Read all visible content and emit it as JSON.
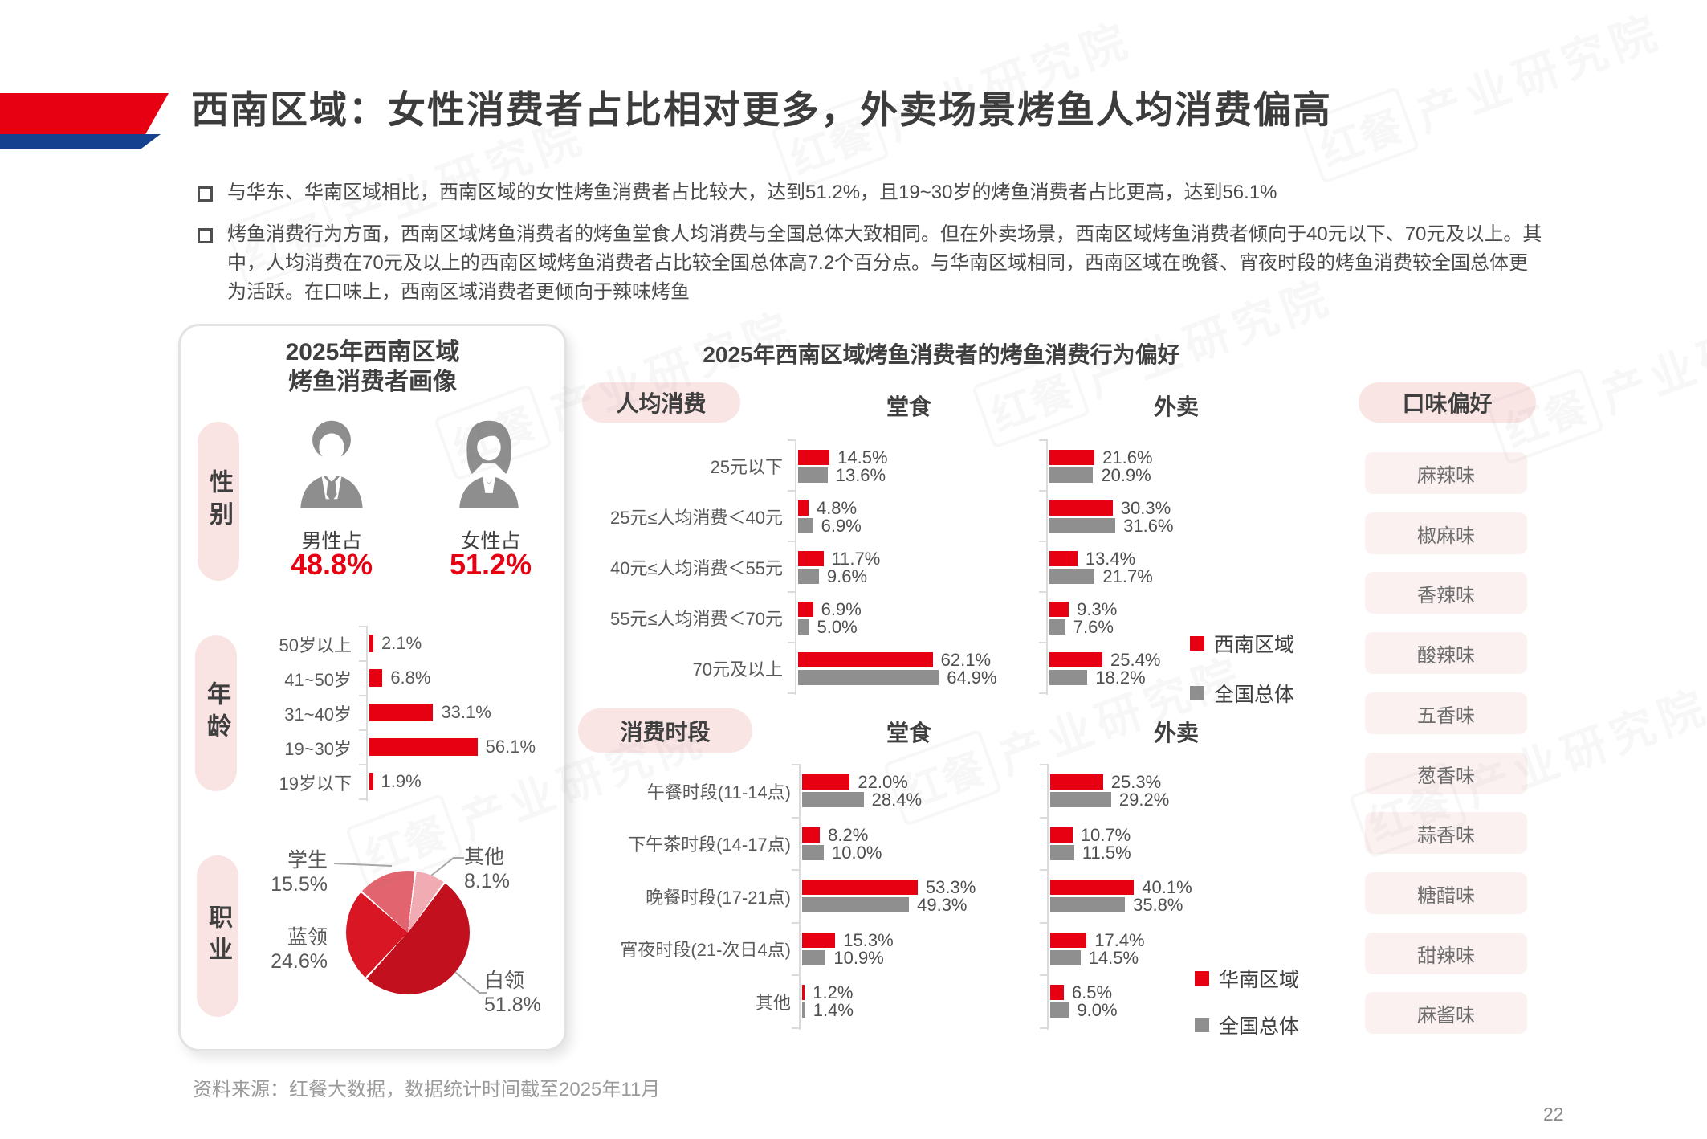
{
  "header": {
    "title": "西南区域：女性消费者占比相对更多，外卖场景烤鱼人均消费偏高"
  },
  "bullets": [
    "与华东、华南区域相比，西南区域的女性烤鱼消费者占比较大，达到51.2%，且19~30岁的烤鱼消费者占比更高，达到56.1%",
    "烤鱼消费行为方面，西南区域烤鱼消费者的烤鱼堂食人均消费与全国总体大致相同。但在外卖场景，西南区域烤鱼消费者倾向于40元以下、70元及以上。其中，人均消费在70元及以上的西南区域烤鱼消费者占比较全国总体高7.2个百分点。与华南区域相同，西南区域在晚餐、宵夜时段的烤鱼消费较全国总体更为活跃。在口味上，西南区域消费者更倾向于辣味烤鱼"
  ],
  "profile": {
    "title_line1": "2025年西南区域",
    "title_line2": "烤鱼消费者画像"
  },
  "sections": {
    "gender_label": "性别",
    "age_label": "年龄",
    "occupation_label": "职业",
    "behavior_title": "2025年西南区域烤鱼消费者的烤鱼消费行为偏好",
    "spend_header": "人均消费",
    "daypart_header": "消费时段",
    "dinein": "堂食",
    "takeout": "外卖",
    "flavor_header": "口味偏好"
  },
  "legends": {
    "spend_region": "西南区域",
    "daypart_region": "华南区域",
    "national": "全国总体"
  },
  "flavors": [
    "麻辣味",
    "椒麻味",
    "香辣味",
    "酸辣味",
    "五香味",
    "葱香味",
    "蒜香味",
    "糖醋味",
    "甜辣味",
    "麻酱味"
  ],
  "chart_data": [
    {
      "id": "gender",
      "type": "kpi",
      "title": "性别",
      "unit": "%",
      "labels": [
        "男性占",
        "女性占"
      ],
      "values": [
        48.8,
        51.2
      ],
      "display": [
        "48.8%",
        "51.2%"
      ]
    },
    {
      "id": "age",
      "type": "bar",
      "title": "年龄",
      "orientation": "horizontal",
      "unit": "%",
      "categories": [
        "50岁以上",
        "41~50岁",
        "31~40岁",
        "19~30岁",
        "19岁以下"
      ],
      "values": [
        2.1,
        6.8,
        33.1,
        56.1,
        1.9
      ],
      "xlim": [
        0,
        60
      ],
      "grid": false
    },
    {
      "id": "occupation",
      "type": "pie",
      "title": "职业",
      "unit": "%",
      "labels": [
        "其他",
        "白领",
        "蓝领",
        "学生"
      ],
      "values": [
        8.1,
        51.8,
        24.6,
        15.5
      ],
      "display": [
        "8.1%",
        "51.8%",
        "24.6%",
        "15.5%"
      ],
      "colors": [
        "#F0ABB3",
        "#C2101E",
        "#D91623",
        "#E2646E"
      ],
      "start_angle_deg": 8
    },
    {
      "id": "spend_dinein",
      "type": "bar",
      "title": "人均消费-堂食",
      "orientation": "horizontal",
      "unit": "%",
      "categories": [
        "25元以下",
        "25元≤人均消费＜40元",
        "40元≤人均消费＜55元",
        "55元≤人均消费＜70元",
        "70元及以上"
      ],
      "series": [
        {
          "name": "西南区域",
          "values": [
            14.5,
            4.8,
            11.7,
            6.9,
            62.1
          ]
        },
        {
          "name": "全国总体",
          "values": [
            13.6,
            6.9,
            9.6,
            5.0,
            64.9
          ]
        }
      ]
    },
    {
      "id": "spend_takeout",
      "type": "bar",
      "title": "人均消费-外卖",
      "orientation": "horizontal",
      "unit": "%",
      "categories": [
        "25元以下",
        "25元≤人均消费＜40元",
        "40元≤人均消费＜55元",
        "55元≤人均消费＜70元",
        "70元及以上"
      ],
      "series": [
        {
          "name": "西南区域",
          "values": [
            21.6,
            30.3,
            13.4,
            9.3,
            25.4
          ]
        },
        {
          "name": "全国总体",
          "values": [
            20.9,
            31.6,
            21.7,
            7.6,
            18.2
          ]
        }
      ]
    },
    {
      "id": "daypart_dinein",
      "type": "bar",
      "title": "消费时段-堂食",
      "orientation": "horizontal",
      "unit": "%",
      "categories": [
        "午餐时段(11-14点)",
        "下午茶时段(14-17点)",
        "晚餐时段(17-21点)",
        "宵夜时段(21-次日4点)",
        "其他"
      ],
      "series": [
        {
          "name": "华南区域",
          "values": [
            22.0,
            8.2,
            53.3,
            15.3,
            1.2
          ]
        },
        {
          "name": "全国总体",
          "values": [
            28.4,
            10.0,
            49.3,
            10.9,
            1.4
          ]
        }
      ]
    },
    {
      "id": "daypart_takeout",
      "type": "bar",
      "title": "消费时段-外卖",
      "orientation": "horizontal",
      "unit": "%",
      "categories": [
        "午餐时段(11-14点)",
        "下午茶时段(14-17点)",
        "晚餐时段(17-21点)",
        "宵夜时段(21-次日4点)",
        "其他"
      ],
      "series": [
        {
          "name": "华南区域",
          "values": [
            25.3,
            10.7,
            40.1,
            17.4,
            6.5
          ]
        },
        {
          "name": "全国总体",
          "values": [
            29.2,
            11.5,
            35.8,
            14.5,
            9.0
          ]
        }
      ]
    }
  ],
  "colors": {
    "accent_red": "#E60012",
    "bar_gray": "#8F8F8F",
    "deco_blue": "#16418F",
    "pill_pink": "#FAE5E5",
    "flavor_pink": "#FCF1F1"
  },
  "watermark": {
    "brand": "红餐",
    "text": "产业研究院"
  },
  "footer": {
    "source": "资料来源：红餐大数据，数据统计时间截至2025年11月"
  },
  "page": {
    "number": "22"
  }
}
